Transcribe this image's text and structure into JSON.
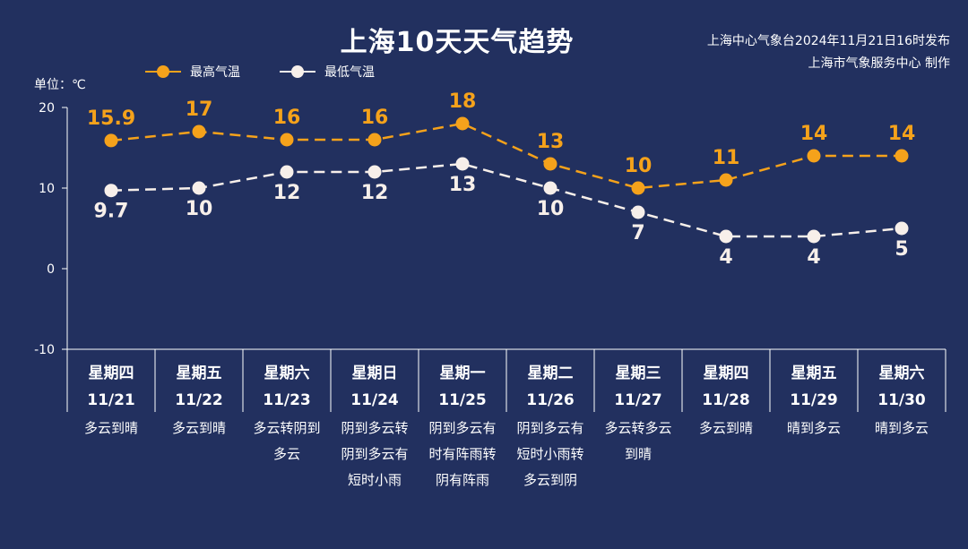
{
  "title": "上海10天天气趋势",
  "publisher": {
    "line1": "上海中心气象台2024年11月21日16时发布",
    "line2": "上海市气象服务中心 制作"
  },
  "unit_label": "单位：℃",
  "colors": {
    "high": "#f5a21b",
    "low": "#f7efea",
    "background": "#22305f",
    "axis": "#ffffff"
  },
  "chart_data": {
    "type": "line",
    "categories": [
      {
        "weekday": "星期四",
        "date": "11/21",
        "weather": [
          "多云到晴"
        ]
      },
      {
        "weekday": "星期五",
        "date": "11/22",
        "weather": [
          "多云到晴"
        ]
      },
      {
        "weekday": "星期六",
        "date": "11/23",
        "weather": [
          "多云转阴到",
          "多云"
        ]
      },
      {
        "weekday": "星期日",
        "date": "11/24",
        "weather": [
          "阴到多云转",
          "阴到多云有",
          "短时小雨"
        ]
      },
      {
        "weekday": "星期一",
        "date": "11/25",
        "weather": [
          "阴到多云有",
          "时有阵雨转",
          "阴有阵雨"
        ]
      },
      {
        "weekday": "星期二",
        "date": "11/26",
        "weather": [
          "阴到多云有",
          "短时小雨转",
          "多云到阴"
        ]
      },
      {
        "weekday": "星期三",
        "date": "11/27",
        "weather": [
          "多云转多云",
          "到晴"
        ]
      },
      {
        "weekday": "星期四",
        "date": "11/28",
        "weather": [
          "多云到晴"
        ]
      },
      {
        "weekday": "星期五",
        "date": "11/29",
        "weather": [
          "晴到多云"
        ]
      },
      {
        "weekday": "星期六",
        "date": "11/30",
        "weather": [
          "晴到多云"
        ]
      }
    ],
    "series": [
      {
        "name": "最高气温",
        "values": [
          15.9,
          17,
          16,
          16,
          18,
          13,
          10,
          11,
          14,
          14
        ]
      },
      {
        "name": "最低气温",
        "values": [
          9.7,
          10,
          12,
          12,
          13,
          10,
          7,
          4,
          4,
          5
        ]
      }
    ],
    "yticks": [
      "20",
      "10",
      "0",
      "-10"
    ],
    "ylim": [
      -10,
      20
    ],
    "grid": false,
    "legend_position": "top-left"
  }
}
